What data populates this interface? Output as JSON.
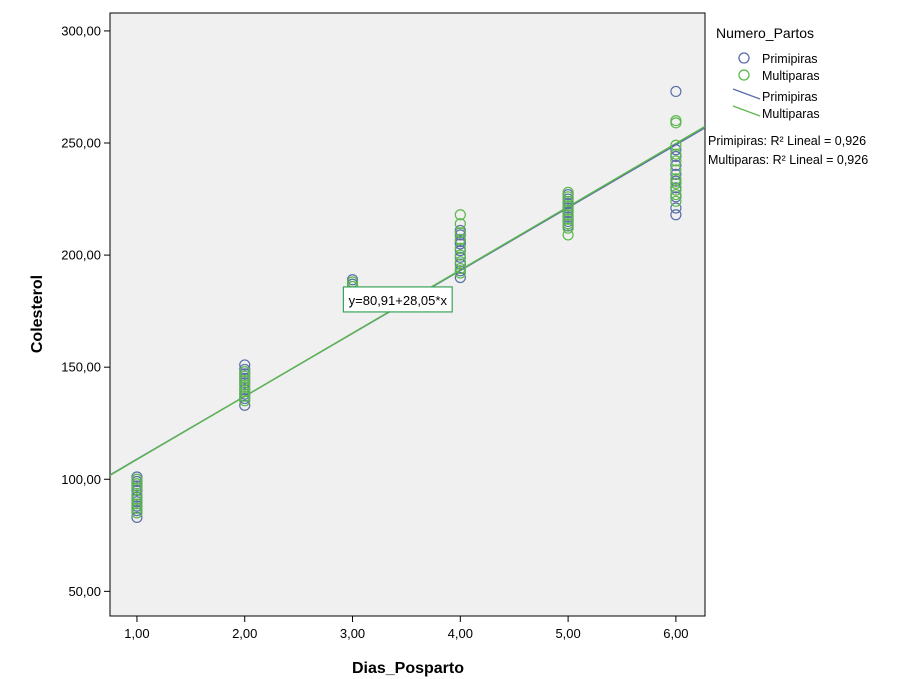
{
  "chart_data": {
    "type": "scatter",
    "xlabel": "Dias_Posparto",
    "ylabel": "Colesterol",
    "xlim": [
      0.75,
      6.27
    ],
    "ylim": [
      39,
      308
    ],
    "x_ticks": [
      1,
      2,
      3,
      4,
      5,
      6
    ],
    "x_tick_labels": [
      "1,00",
      "2,00",
      "3,00",
      "4,00",
      "5,00",
      "6,00"
    ],
    "y_ticks": [
      50,
      100,
      150,
      200,
      250,
      300
    ],
    "y_tick_labels": [
      "50,00",
      "100,00",
      "150,00",
      "200,00",
      "250,00",
      "300,00"
    ],
    "grid": false,
    "legend": {
      "title": "Numero_Partos",
      "placement": "right",
      "marker_entries": [
        "Primipiras",
        "Multiparas"
      ],
      "line_entries": [
        "Primipiras",
        "Multiparas"
      ]
    },
    "r2_labels": [
      "Primipiras: R² Lineal = 0,926",
      "Multiparas: R² Lineal = 0,926"
    ],
    "equation_label": "y=80,91+28,05*x",
    "equation_anchor": {
      "x": 3.42,
      "y": 180
    },
    "series": [
      {
        "name": "Primipiras",
        "color": "#5a6ea8",
        "fit": {
          "intercept": 80.91,
          "slope": 28.05
        },
        "points": [
          [
            1,
            83
          ],
          [
            1,
            86
          ],
          [
            1,
            88
          ],
          [
            1,
            90
          ],
          [
            1,
            92
          ],
          [
            1,
            95
          ],
          [
            1,
            97
          ],
          [
            1,
            99
          ],
          [
            1,
            101
          ],
          [
            2,
            133
          ],
          [
            2,
            136
          ],
          [
            2,
            138
          ],
          [
            2,
            140
          ],
          [
            2,
            143
          ],
          [
            2,
            145
          ],
          [
            2,
            147
          ],
          [
            2,
            149
          ],
          [
            2,
            151
          ],
          [
            3,
            187
          ],
          [
            3,
            189
          ],
          [
            4,
            190
          ],
          [
            4,
            193
          ],
          [
            4,
            196
          ],
          [
            4,
            199
          ],
          [
            4,
            202
          ],
          [
            4,
            205
          ],
          [
            4,
            206
          ],
          [
            4,
            209
          ],
          [
            4,
            211
          ],
          [
            5,
            213
          ],
          [
            5,
            215
          ],
          [
            5,
            217
          ],
          [
            5,
            219
          ],
          [
            5,
            221
          ],
          [
            5,
            223
          ],
          [
            5,
            225
          ],
          [
            5,
            227
          ],
          [
            6,
            218
          ],
          [
            6,
            221
          ],
          [
            6,
            226
          ],
          [
            6,
            230
          ],
          [
            6,
            233
          ],
          [
            6,
            236
          ],
          [
            6,
            240
          ],
          [
            6,
            244
          ],
          [
            6,
            247
          ],
          [
            6,
            273
          ]
        ]
      },
      {
        "name": "Multiparas",
        "color": "#5cb84c",
        "fit": {
          "intercept": 80.6,
          "slope": 28.2
        },
        "points": [
          [
            1,
            85
          ],
          [
            1,
            87
          ],
          [
            1,
            89
          ],
          [
            1,
            91
          ],
          [
            1,
            93
          ],
          [
            1,
            96
          ],
          [
            1,
            98
          ],
          [
            1,
            100
          ],
          [
            2,
            135
          ],
          [
            2,
            137
          ],
          [
            2,
            139
          ],
          [
            2,
            141
          ],
          [
            2,
            142
          ],
          [
            2,
            144
          ],
          [
            2,
            146
          ],
          [
            2,
            148
          ],
          [
            3,
            186
          ],
          [
            3,
            188
          ],
          [
            4,
            192
          ],
          [
            4,
            194
          ],
          [
            4,
            197
          ],
          [
            4,
            200
          ],
          [
            4,
            203
          ],
          [
            4,
            207
          ],
          [
            4,
            210
          ],
          [
            4,
            214
          ],
          [
            4,
            218
          ],
          [
            5,
            209
          ],
          [
            5,
            212
          ],
          [
            5,
            214
          ],
          [
            5,
            216
          ],
          [
            5,
            218
          ],
          [
            5,
            220
          ],
          [
            5,
            222
          ],
          [
            5,
            224
          ],
          [
            5,
            226
          ],
          [
            5,
            228
          ],
          [
            6,
            224
          ],
          [
            6,
            227
          ],
          [
            6,
            229
          ],
          [
            6,
            232
          ],
          [
            6,
            234
          ],
          [
            6,
            238
          ],
          [
            6,
            242
          ],
          [
            6,
            245
          ],
          [
            6,
            249
          ],
          [
            6,
            259
          ],
          [
            6,
            260
          ]
        ]
      }
    ]
  }
}
